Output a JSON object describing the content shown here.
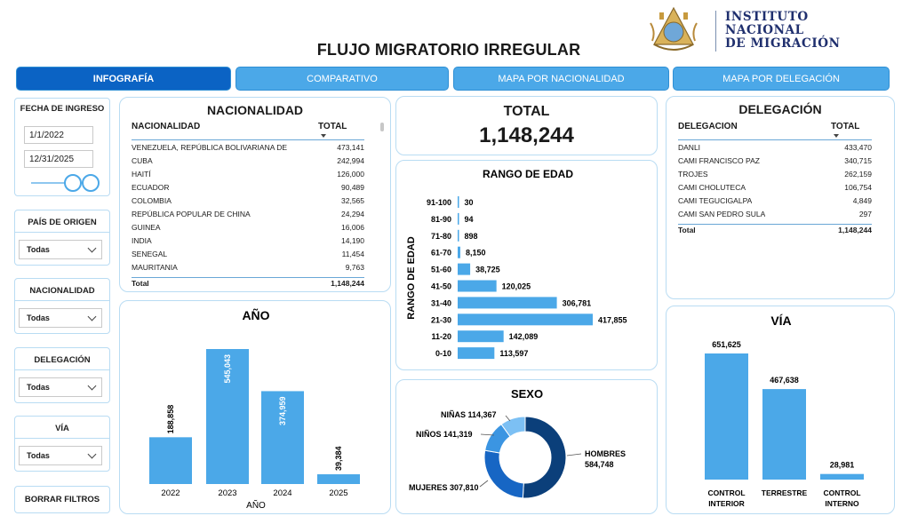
{
  "header": {
    "title": "FLUJO MIGRATORIO IRREGULAR",
    "logo_lines": [
      "INSTITUTO",
      "NACIONAL",
      "DE MIGRACIÓN"
    ]
  },
  "tabs": [
    {
      "label": "INFOGRAFÍA",
      "active": true
    },
    {
      "label": "COMPARATIVO",
      "active": false
    },
    {
      "label": "MAPA POR NACIONALIDAD",
      "active": false
    },
    {
      "label": "MAPA POR DELEGACIÓN",
      "active": false
    }
  ],
  "filters": {
    "fecha": {
      "title": "FECHA DE INGRESO",
      "start": "1/1/2022",
      "end": "12/31/2025"
    },
    "pais": {
      "title": "PAÍS DE ORIGEN",
      "value": "Todas"
    },
    "nacionalidad": {
      "title": "NACIONALIDAD",
      "value": "Todas"
    },
    "delegacion": {
      "title": "DELEGACIÓN",
      "value": "Todas"
    },
    "via": {
      "title": "VÍA",
      "value": "Todas"
    },
    "clear_label": "BORRAR FILTROS"
  },
  "nacionalidad_table": {
    "title": "NACIONALIDAD",
    "col1": "NACIONALIDAD",
    "col2": "TOTAL",
    "rows": [
      {
        "name": "VENEZUELA, REPÚBLICA BOLIVARIANA DE",
        "total": "473,141"
      },
      {
        "name": "CUBA",
        "total": "242,994"
      },
      {
        "name": "HAITÍ",
        "total": "126,000"
      },
      {
        "name": "ECUADOR",
        "total": "90,489"
      },
      {
        "name": "COLOMBIA",
        "total": "32,565"
      },
      {
        "name": "REPÚBLICA POPULAR DE CHINA",
        "total": "24,294"
      },
      {
        "name": "GUINEA",
        "total": "16,006"
      },
      {
        "name": "INDIA",
        "total": "14,190"
      },
      {
        "name": "SENEGAL",
        "total": "11,454"
      },
      {
        "name": "MAURITANIA",
        "total": "9,763"
      }
    ],
    "total_label": "Total",
    "total_value": "1,148,244"
  },
  "total_card": {
    "label": "TOTAL",
    "value": "1,148,244"
  },
  "delegacion_table": {
    "title": "DELEGACIÓN",
    "col1": "DELEGACIÓN",
    "col2": "TOTAL",
    "rows": [
      {
        "name": "DANLI",
        "total": "433,470"
      },
      {
        "name": "CAMI FRANCISCO PAZ",
        "total": "340,715"
      },
      {
        "name": "TROJES",
        "total": "262,159"
      },
      {
        "name": "CAMI CHOLUTECA",
        "total": "106,754"
      },
      {
        "name": "CAMI TEGUCIGALPA",
        "total": "4,849"
      },
      {
        "name": "CAMI SAN PEDRO SULA",
        "total": "297"
      }
    ],
    "total_label": "Total",
    "total_value": "1,148,244"
  },
  "colors": {
    "bar": "#4ba8e8",
    "accent_dark": "#0b63c4",
    "border": "#b9dcf3",
    "donut_hombres": "#0b3f7a",
    "donut_mujeres": "#1766c4",
    "donut_ninos": "#3b95e2",
    "donut_ninas": "#7cc0f4"
  },
  "chart_data": [
    {
      "id": "anio",
      "type": "bar",
      "title": "AÑO",
      "xlabel": "AÑO",
      "categories": [
        "2022",
        "2023",
        "2024",
        "2025"
      ],
      "values": [
        188858,
        545043,
        374959,
        39384
      ],
      "value_labels": [
        "188,858",
        "545,043",
        "374,959",
        "39,384"
      ]
    },
    {
      "id": "rango_edad",
      "type": "bar",
      "orientation": "horizontal",
      "title": "RANGO DE EDAD",
      "ylabel": "RANGO DE EDAD",
      "categories": [
        "91-100",
        "81-90",
        "71-80",
        "61-70",
        "51-60",
        "41-50",
        "31-40",
        "21-30",
        "11-20",
        "0-10"
      ],
      "values": [
        30,
        94,
        898,
        8150,
        38725,
        120025,
        306781,
        417855,
        142089,
        113597
      ],
      "value_labels": [
        "30",
        "94",
        "898",
        "8,150",
        "38,725",
        "120,025",
        "306,781",
        "417,855",
        "142,089",
        "113,597"
      ]
    },
    {
      "id": "sexo",
      "type": "pie",
      "title": "SEXO",
      "categories": [
        "HOMBRES",
        "MUJERES",
        "NIÑOS",
        "NIÑAS"
      ],
      "values": [
        584748,
        307810,
        141319,
        114367
      ],
      "value_labels": [
        "584,748",
        "307,810",
        "141,319",
        "114,367"
      ]
    },
    {
      "id": "via",
      "type": "bar",
      "title": "VÍA",
      "categories": [
        "CONTROL INTERIOR",
        "TERRESTRE",
        "CONTROL INTERNO"
      ],
      "category_lines": [
        [
          "CONTROL",
          "INTERIOR"
        ],
        [
          "TERRESTRE"
        ],
        [
          "CONTROL",
          "INTERNO"
        ]
      ],
      "values": [
        651625,
        467638,
        28981
      ],
      "value_labels": [
        "651,625",
        "467,638",
        "28,981"
      ]
    }
  ]
}
